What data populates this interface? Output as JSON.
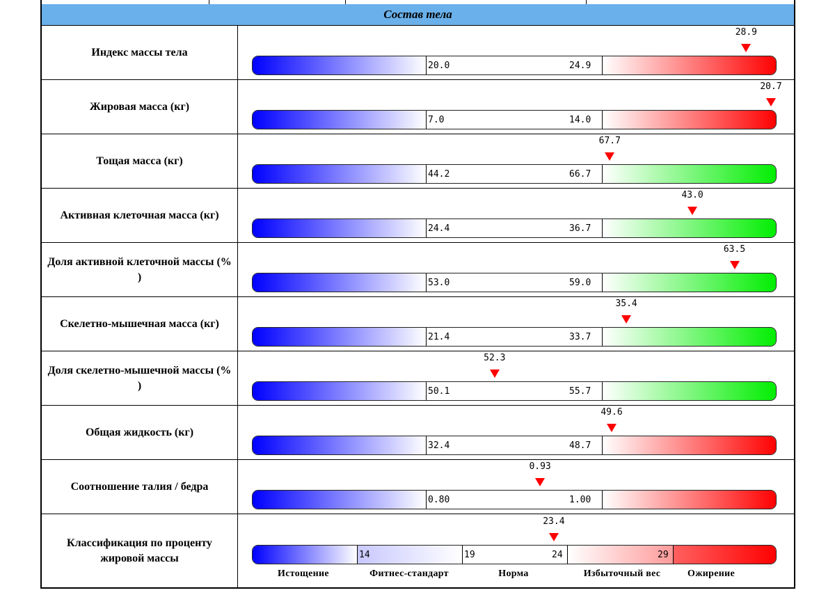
{
  "section_title": "Состав тела",
  "rows": [
    {
      "label": "Индекс массы тела",
      "low": "20.0",
      "high": "24.9",
      "value": "28.9",
      "value_num": 28.9,
      "low_num": 20.0,
      "high_num": 24.9,
      "zone": "red"
    },
    {
      "label": "Жировая масса (кг)",
      "low": "7.0",
      "high": "14.0",
      "value": "20.7",
      "value_num": 20.7,
      "low_num": 7.0,
      "high_num": 14.0,
      "zone": "red"
    },
    {
      "label": "Тощая масса (кг)",
      "low": "44.2",
      "high": "66.7",
      "value": "67.7",
      "value_num": 67.7,
      "low_num": 44.2,
      "high_num": 66.7,
      "zone": "green"
    },
    {
      "label": "Активная клеточная масса (кг)",
      "low": "24.4",
      "high": "36.7",
      "value": "43.0",
      "value_num": 43.0,
      "low_num": 24.4,
      "high_num": 36.7,
      "zone": "green"
    },
    {
      "label": "Доля активной клеточной массы (% )",
      "low": "53.0",
      "high": "59.0",
      "value": "63.5",
      "value_num": 63.5,
      "low_num": 53.0,
      "high_num": 59.0,
      "zone": "green"
    },
    {
      "label": "Скелетно-мышечная масса (кг)",
      "low": "21.4",
      "high": "33.7",
      "value": "35.4",
      "value_num": 35.4,
      "low_num": 21.4,
      "high_num": 33.7,
      "zone": "green"
    },
    {
      "label": "Доля скелетно-мышечной массы (% )",
      "low": "50.1",
      "high": "55.7",
      "value": "52.3",
      "value_num": 52.3,
      "low_num": 50.1,
      "high_num": 55.7,
      "zone": "green"
    },
    {
      "label": "Общая жидкость (кг)",
      "low": "32.4",
      "high": "48.7",
      "value": "49.6",
      "value_num": 49.6,
      "low_num": 32.4,
      "high_num": 48.7,
      "zone": "red"
    },
    {
      "label": "Соотношение талия / бедра",
      "low": "0.80",
      "high": "1.00",
      "value": "0.93",
      "value_num": 0.93,
      "low_num": 0.8,
      "high_num": 1.0,
      "zone": "red"
    }
  ],
  "fat_class": {
    "label": "Классификация по проценту жировой массы",
    "value": "23.4",
    "value_num": 23.4,
    "ticks": [
      "14",
      "19",
      "24",
      "29"
    ],
    "categories": [
      "Истощение",
      "Фитнес-стандарт",
      "Норма",
      "Избыточный вес",
      "Ожирение"
    ]
  },
  "colors": {
    "header_bg": "#6ab0ea",
    "marker": "#ff0000",
    "low": "#0000ff",
    "high_red": "#ff0000",
    "high_green": "#00ee00"
  }
}
